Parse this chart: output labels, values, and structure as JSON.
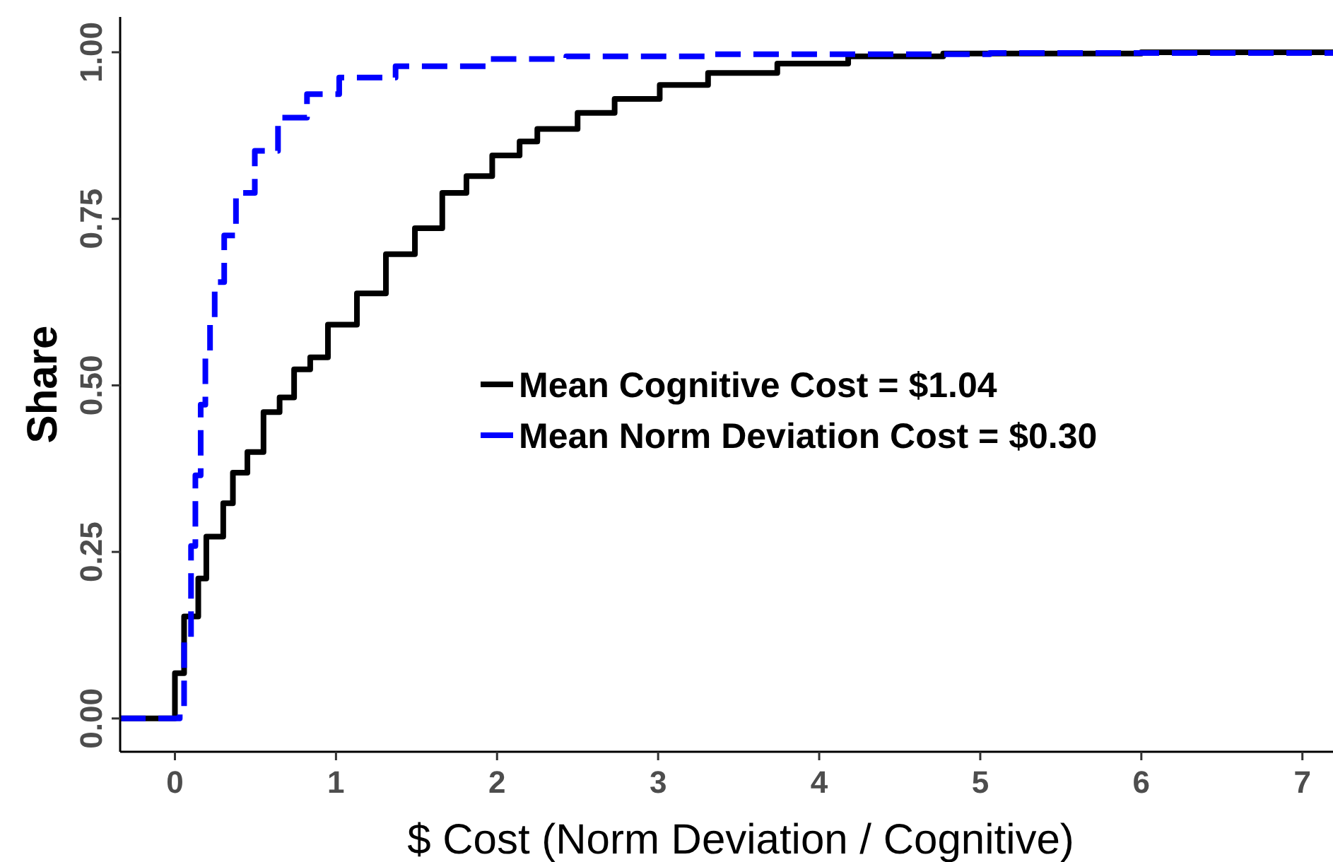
{
  "chart_data": {
    "type": "step",
    "xlabel": "$ Cost (Norm Deviation / Cognitive)",
    "ylabel": "Share",
    "xlim": [
      -0.34,
      7.19
    ],
    "ylim": [
      -0.05,
      1.053
    ],
    "xticks": [
      0,
      1,
      2,
      3,
      4,
      5,
      6,
      7
    ],
    "yticks": [
      {
        "value": 0,
        "label": "0.00"
      },
      {
        "value": 0.25,
        "label": "0.25"
      },
      {
        "value": 0.5,
        "label": "0.50"
      },
      {
        "value": 0.75,
        "label": "0.75"
      },
      {
        "value": 1,
        "label": "1.00"
      }
    ],
    "grid": false,
    "legend": "right",
    "marker": "none",
    "series": [
      {
        "name": "Mean Cognitive Cost = $1.04",
        "color": "#000000",
        "line_style": "solid",
        "x": [
          -0.34,
          0,
          0.057,
          0.145,
          0.195,
          0.3,
          0.36,
          0.45,
          0.55,
          0.65,
          0.74,
          0.84,
          0.95,
          1.13,
          1.31,
          1.49,
          1.66,
          1.81,
          1.97,
          2.14,
          2.25,
          2.5,
          2.73,
          3.01,
          3.31,
          3.74,
          4.18,
          4.77,
          6.0,
          7.19
        ],
        "values": [
          0,
          0.068,
          0.153,
          0.21,
          0.273,
          0.323,
          0.369,
          0.4,
          0.46,
          0.482,
          0.524,
          0.542,
          0.591,
          0.638,
          0.697,
          0.736,
          0.789,
          0.814,
          0.845,
          0.866,
          0.885,
          0.909,
          0.93,
          0.951,
          0.969,
          0.983,
          0.994,
          0.998,
          1,
          1
        ]
      },
      {
        "name": "Mean Norm Deviation Cost = $0.30",
        "color": "#0000ff",
        "line_style": "dashed",
        "x": [
          -0.34,
          0.03,
          0.057,
          0.1,
          0.127,
          0.16,
          0.189,
          0.218,
          0.247,
          0.306,
          0.379,
          0.496,
          0.64,
          0.82,
          1.02,
          1.37,
          1.96,
          2.43,
          3.31,
          5.06,
          7.19
        ],
        "values": [
          0,
          0.01,
          0.119,
          0.259,
          0.365,
          0.471,
          0.542,
          0.598,
          0.655,
          0.725,
          0.789,
          0.852,
          0.902,
          0.937,
          0.962,
          0.979,
          0.99,
          0.994,
          0.997,
          0.999,
          1
        ]
      }
    ]
  }
}
